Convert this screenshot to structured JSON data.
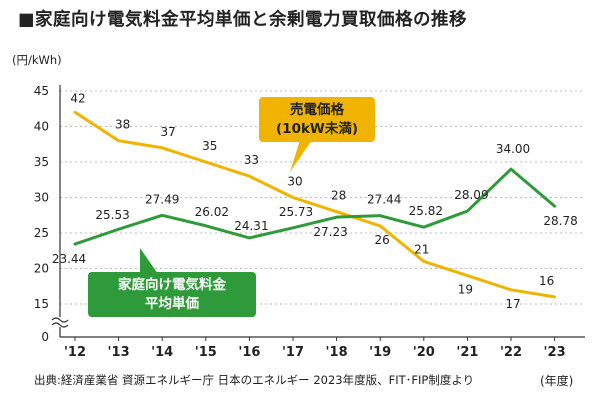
{
  "title": "■家庭向け電気料金平均単価と余剰電力買取価格の推移",
  "unit_label": "(円/kWh)",
  "x_unit_label": "(年度)",
  "source": "出典:経済産業省 資源エネルギー庁 日本のエネルギー 2023年度版、FIT･FIP制度より",
  "colors": {
    "fit": "#f0b400",
    "elec": "#2e9a3a",
    "axis": "#333333",
    "grid": "#bbbbbb"
  },
  "chart_data": {
    "type": "line",
    "categories": [
      "'12",
      "'13",
      "'14",
      "'15",
      "'16",
      "'17",
      "'18",
      "'19",
      "'20",
      "'21",
      "'22",
      "'23"
    ],
    "ylim": [
      0,
      45
    ],
    "y_ticks": [
      0,
      15,
      20,
      25,
      30,
      35,
      40,
      45
    ],
    "y_axis_break": true,
    "grid": "horizontal",
    "series": [
      {
        "name_lines": [
          "売電価格",
          "(10kW未満)"
        ],
        "color_key": "fit",
        "values": [
          42,
          38,
          37,
          35,
          33,
          30,
          28,
          26,
          21,
          19,
          17,
          16
        ],
        "labels": [
          "42",
          "38",
          "37",
          "35",
          "33",
          "30",
          "28",
          "26",
          "21",
          "19",
          "17",
          "16"
        ]
      },
      {
        "name_lines": [
          "家庭向け電気料金",
          "平均単価"
        ],
        "color_key": "elec",
        "values": [
          23.44,
          25.53,
          27.49,
          26.02,
          24.31,
          25.73,
          27.23,
          27.44,
          25.82,
          28.09,
          34.0,
          28.78
        ],
        "labels": [
          "23.44",
          "25.53",
          "27.49",
          "26.02",
          "24.31",
          "25.73",
          "27.23",
          "27.44",
          "25.82",
          "28.09",
          "34.00",
          "28.78"
        ]
      }
    ]
  }
}
